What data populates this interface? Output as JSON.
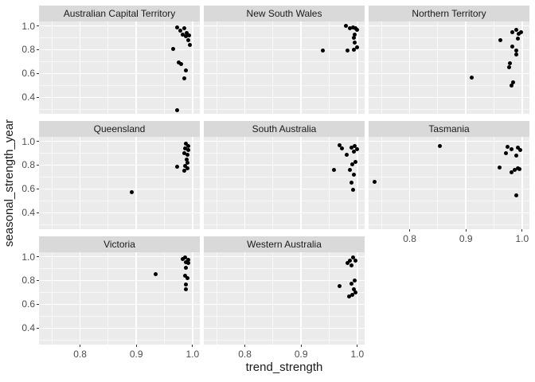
{
  "chart_data": {
    "type": "scatter",
    "title": "",
    "xlabel": "trend_strength",
    "ylabel": "seasonal_strength_year",
    "facet_by": "State",
    "legend": "none",
    "grid": "on",
    "x_domain": [
      0.727,
      1.013
    ],
    "y_domain": [
      0.262,
      1.037
    ],
    "x_ticks": [
      0.8,
      0.9,
      1.0
    ],
    "y_ticks": [
      0.4,
      0.6,
      0.8,
      1.0
    ],
    "x_minor_ticks": [
      0.75,
      0.85,
      0.95
    ],
    "y_minor_ticks": [
      0.3,
      0.5,
      0.7,
      0.9
    ],
    "panels": [
      {
        "name": "Australian Capital Territory",
        "row": 0,
        "col": 0,
        "points": [
          [
            0.972,
            0.985
          ],
          [
            0.979,
            0.962
          ],
          [
            0.986,
            0.978
          ],
          [
            0.99,
            0.941
          ],
          [
            0.983,
            0.928
          ],
          [
            0.988,
            0.913
          ],
          [
            0.994,
            0.919
          ],
          [
            0.993,
            0.883
          ],
          [
            0.995,
            0.838
          ],
          [
            0.965,
            0.805
          ],
          [
            0.975,
            0.694
          ],
          [
            0.98,
            0.677
          ],
          [
            0.988,
            0.625
          ],
          [
            0.985,
            0.558
          ],
          [
            0.973,
            0.295
          ]
        ]
      },
      {
        "name": "New South Wales",
        "row": 0,
        "col": 1,
        "points": [
          [
            0.98,
            0.997
          ],
          [
            0.987,
            0.98
          ],
          [
            0.992,
            0.985
          ],
          [
            0.997,
            0.98
          ],
          [
            1.0,
            0.964
          ],
          [
            0.995,
            0.928
          ],
          [
            0.994,
            0.897
          ],
          [
            0.995,
            0.861
          ],
          [
            0.999,
            0.822
          ],
          [
            0.994,
            0.8
          ],
          [
            0.983,
            0.793
          ],
          [
            0.939,
            0.79
          ]
        ]
      },
      {
        "name": "Northern Territory",
        "row": 0,
        "col": 2,
        "points": [
          [
            0.962,
            0.883
          ],
          [
            0.982,
            0.946
          ],
          [
            0.989,
            0.968
          ],
          [
            0.994,
            0.935
          ],
          [
            0.998,
            0.95
          ],
          [
            0.993,
            0.896
          ],
          [
            0.982,
            0.827
          ],
          [
            0.99,
            0.793
          ],
          [
            0.989,
            0.762
          ],
          [
            0.979,
            0.688
          ],
          [
            0.977,
            0.65
          ],
          [
            0.984,
            0.524
          ],
          [
            0.981,
            0.497
          ],
          [
            0.91,
            0.567
          ]
        ]
      },
      {
        "name": "Queensland",
        "row": 1,
        "col": 0,
        "points": [
          [
            0.988,
            0.978
          ],
          [
            0.993,
            0.963
          ],
          [
            0.987,
            0.941
          ],
          [
            0.992,
            0.926
          ],
          [
            0.986,
            0.903
          ],
          [
            0.991,
            0.886
          ],
          [
            0.99,
            0.847
          ],
          [
            0.991,
            0.82
          ],
          [
            0.987,
            0.794
          ],
          [
            0.991,
            0.772
          ],
          [
            0.973,
            0.787
          ],
          [
            0.986,
            0.754
          ],
          [
            0.892,
            0.572
          ]
        ]
      },
      {
        "name": "South Australia",
        "row": 1,
        "col": 1,
        "points": [
          [
            0.969,
            0.969
          ],
          [
            0.973,
            0.941
          ],
          [
            0.981,
            0.886
          ],
          [
            0.99,
            0.947
          ],
          [
            0.995,
            0.962
          ],
          [
            0.999,
            0.934
          ],
          [
            0.994,
            0.912
          ],
          [
            0.991,
            0.809
          ],
          [
            0.997,
            0.824
          ],
          [
            0.987,
            0.759
          ],
          [
            0.959,
            0.759
          ],
          [
            0.994,
            0.722
          ],
          [
            0.99,
            0.656
          ],
          [
            0.992,
            0.59
          ]
        ]
      },
      {
        "name": "Tasmania",
        "row": 1,
        "col": 2,
        "points": [
          [
            0.974,
            0.956
          ],
          [
            0.981,
            0.934
          ],
          [
            0.992,
            0.947
          ],
          [
            0.997,
            0.93
          ],
          [
            0.971,
            0.903
          ],
          [
            0.99,
            0.882
          ],
          [
            0.96,
            0.781
          ],
          [
            0.981,
            0.743
          ],
          [
            0.987,
            0.759
          ],
          [
            0.992,
            0.772
          ],
          [
            0.995,
            0.765
          ],
          [
            0.989,
            0.546
          ],
          [
            0.854,
            0.962
          ],
          [
            0.738,
            0.66
          ]
        ]
      },
      {
        "name": "Victoria",
        "row": 2,
        "col": 0,
        "points": [
          [
            0.982,
            0.983
          ],
          [
            0.987,
            0.991
          ],
          [
            0.992,
            0.976
          ],
          [
            0.988,
            0.955
          ],
          [
            0.993,
            0.944
          ],
          [
            0.988,
            0.905
          ],
          [
            0.987,
            0.837
          ],
          [
            0.991,
            0.819
          ],
          [
            0.988,
            0.768
          ],
          [
            0.988,
            0.729
          ],
          [
            0.934,
            0.854
          ]
        ]
      },
      {
        "name": "Western Australia",
        "row": 2,
        "col": 1,
        "points": [
          [
            0.992,
            0.991
          ],
          [
            0.987,
            0.97
          ],
          [
            0.997,
            0.966
          ],
          [
            0.982,
            0.948
          ],
          [
            0.99,
            0.927
          ],
          [
            0.995,
            0.798
          ],
          [
            0.99,
            0.772
          ],
          [
            0.968,
            0.75
          ],
          [
            0.994,
            0.725
          ],
          [
            0.997,
            0.697
          ],
          [
            0.986,
            0.669
          ],
          [
            0.991,
            0.682
          ]
        ]
      }
    ]
  },
  "style": {
    "background": "#FFFFFF",
    "panel_bg": "#EBEBEB",
    "strip_bg": "#D9D9D9",
    "grid_color": "#FFFFFF",
    "point_color": "#000000",
    "tick_label_color": "#4D4D4D",
    "tick_mark_color": "#333333",
    "text_color": "#1A1A1A"
  }
}
